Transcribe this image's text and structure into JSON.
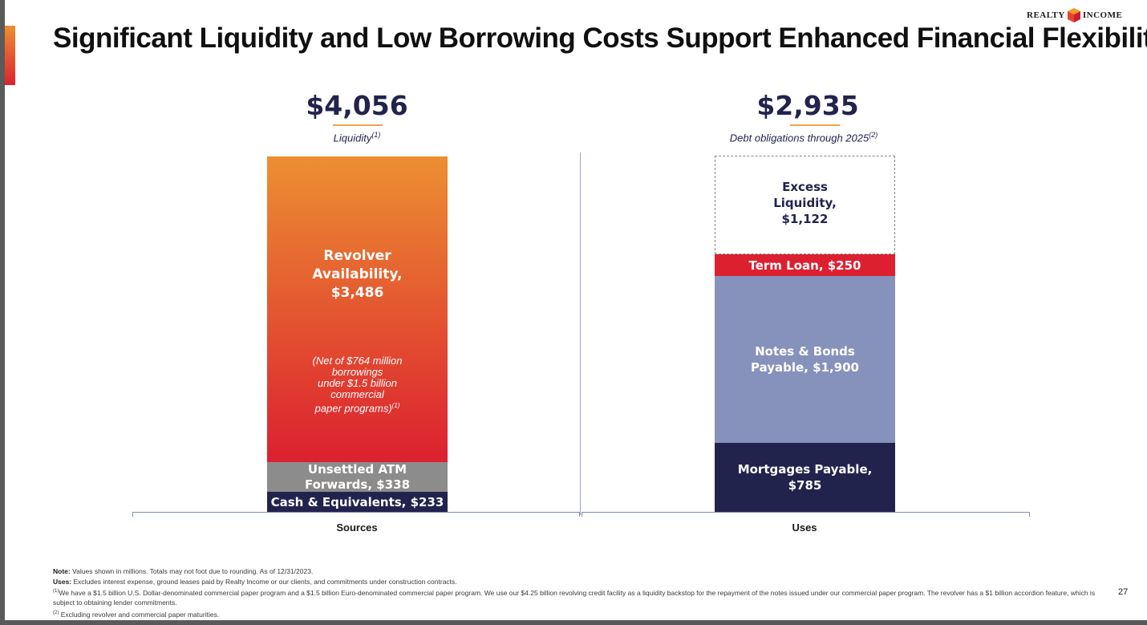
{
  "header": {
    "title": "Significant Liquidity and Low Borrowing Costs Support Enhanced Financial Flexibility",
    "logo_left": "REALTY",
    "logo_right": "INCOME"
  },
  "summary": {
    "left_total": "$4,056",
    "left_label": "Liquidity",
    "left_label_sup": "(1)",
    "right_total": "$2,935",
    "right_label": "Debt obligations through 2025",
    "right_label_sup": "(2)"
  },
  "chart_data": {
    "type": "bar",
    "stacked": true,
    "categories": [
      "Sources",
      "Uses"
    ],
    "unit": "$ millions",
    "series": [
      {
        "name": "Cash & Equivalents",
        "category": "Sources",
        "value": 233,
        "color": "#22234d",
        "label": "Cash & Equivalents, $233"
      },
      {
        "name": "Unsettled ATM Forwards",
        "category": "Sources",
        "value": 338,
        "color": "#8c8c8c",
        "label": "Unsettled ATM\nForwards, $338"
      },
      {
        "name": "Revolver Availability",
        "category": "Sources",
        "value": 3486,
        "color_top": "#ec8f31",
        "color_bottom": "#dc2030",
        "label": "Revolver\nAvailability,\n$3,486",
        "note": "(Net of $764 million\nborrowings\nunder $1.5 billion\ncommercial\npaper programs)",
        "note_sup": "(1)"
      },
      {
        "name": "Mortgages Payable",
        "category": "Uses",
        "value": 785,
        "color": "#22234d",
        "label": "Mortgages Payable,\n$785"
      },
      {
        "name": "Notes & Bonds Payable",
        "category": "Uses",
        "value": 1900,
        "color": "#8792bc",
        "label": "Notes & Bonds\nPayable, $1,900"
      },
      {
        "name": "Term Loan",
        "category": "Uses",
        "value": 250,
        "color": "#dc2030",
        "label": "Term Loan, $250"
      },
      {
        "name": "Excess Liquidity",
        "category": "Uses",
        "value": 1122,
        "color": "none",
        "dashed": true,
        "label": "Excess\nLiquidity,\n$1,122"
      }
    ],
    "totals": {
      "Sources": 4056,
      "Uses": 2935
    },
    "ylim": [
      0,
      4056
    ]
  },
  "footnotes": {
    "note_label": "Note:",
    "note_text": " Values shown in millions. Totals may not foot due to rounding. As of 12/31/2023.",
    "uses_label": "Uses:",
    "uses_text": " Excludes interest expense, ground leases paid by Realty Income or our clients, and commitments under construction contracts.",
    "fn1_mark": "(1)",
    "fn1_text": "We have a $1.5 billion U.S. Dollar-denominated commercial paper program and a $1.5 billion Euro-denominated commercial paper program. We use our $4.25 billion revolving credit facility as a liquidity backstop for the repayment of the notes issued under our commercial paper program. The revolver has a $1 billion accordion feature, which is subject to obtaining lender commitments.",
    "fn2_mark": "(2)",
    "fn2_text": " Excluding revolver and commercial paper maturities."
  },
  "page_number": "27"
}
